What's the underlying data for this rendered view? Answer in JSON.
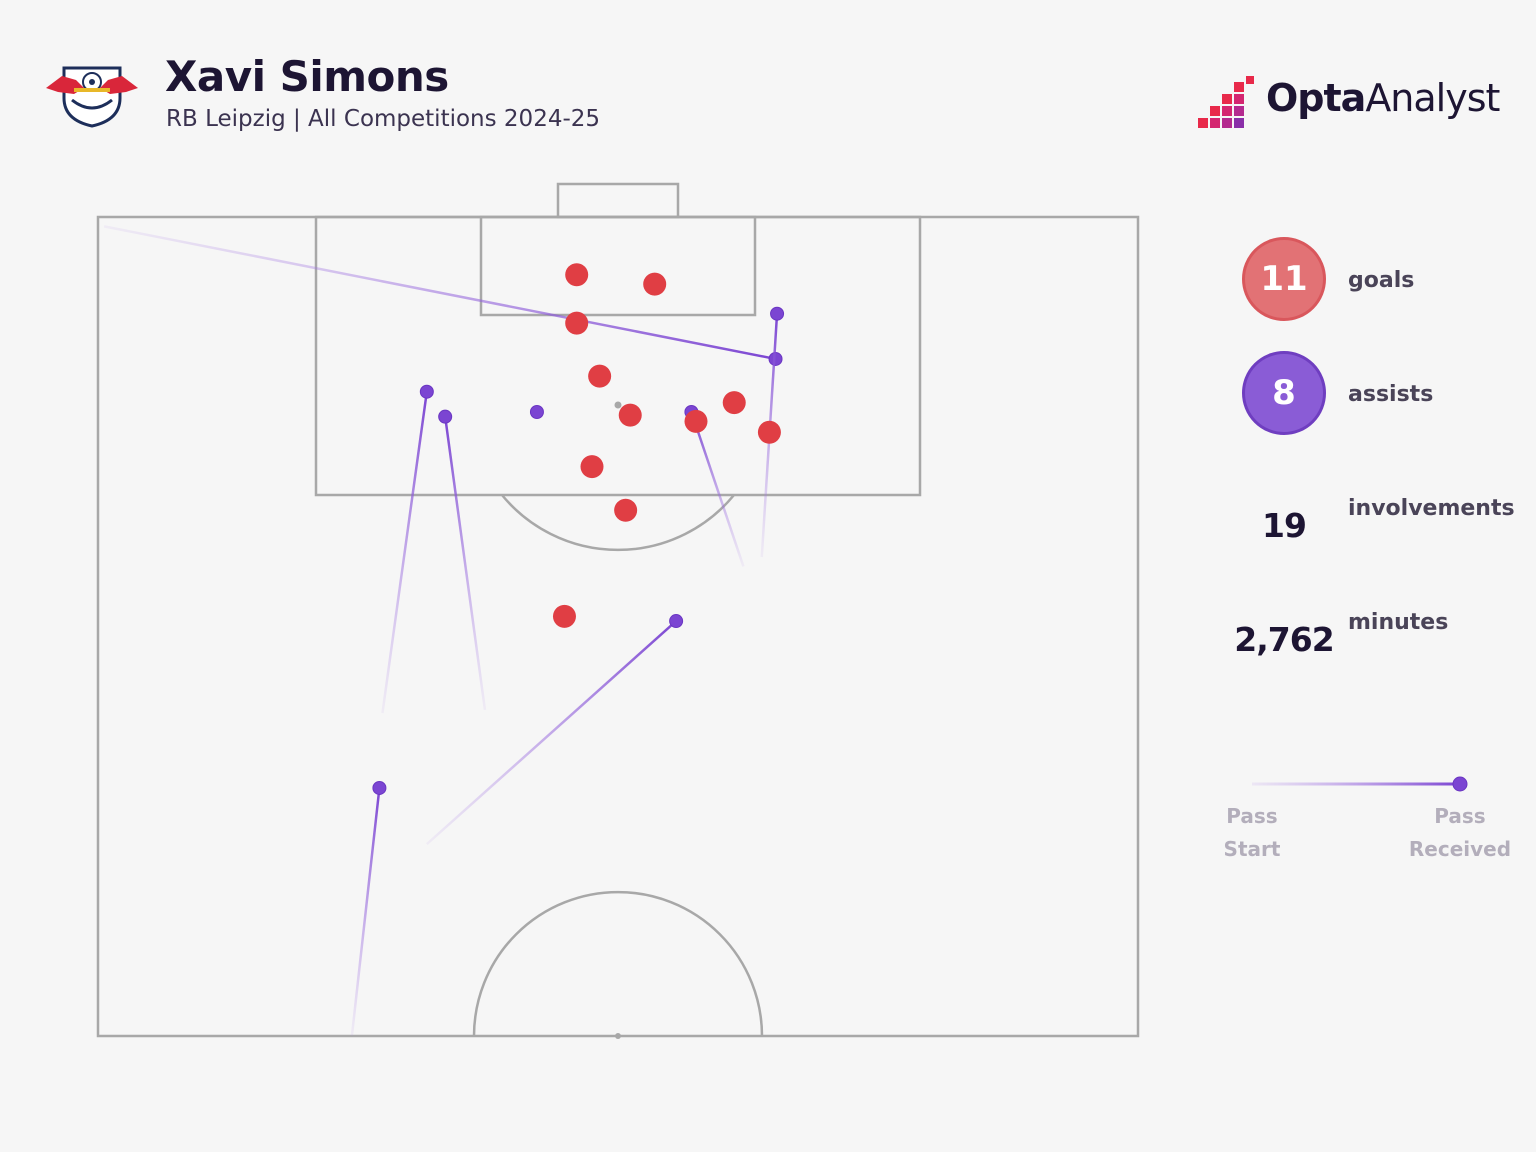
{
  "header": {
    "player": "Xavi Simons",
    "subtitle": "RB Leipzig | All Competitions 2024-25",
    "club_logo_icon": "rb-leipzig-crest",
    "brand": {
      "strong": "Opta",
      "light": "Analyst"
    }
  },
  "stats": [
    {
      "value": "11",
      "label": "goals",
      "style": "badge",
      "color": "#e27275"
    },
    {
      "value": "8",
      "label": "assists",
      "style": "badge",
      "color": "#8a5cd6"
    },
    {
      "value": "19",
      "label": "involvements",
      "style": "plain"
    },
    {
      "value": "2,762",
      "label": "minutes",
      "style": "plain"
    }
  ],
  "legend": {
    "start_line1": "Pass",
    "start_line2": "Start",
    "end_line1": "Pass",
    "end_line2": "Received"
  },
  "colors": {
    "goal": "#e03e44",
    "assist": "#7b45d2",
    "pitch_line": "#a8a8a8",
    "background": "#f6f6f6"
  },
  "chart_data": {
    "type": "scatter",
    "title": "",
    "xlabel": "",
    "ylabel": "",
    "xlim": [
      0,
      68
    ],
    "ylim": [
      52.5,
      105
    ],
    "grid": false,
    "pitch": "half-pitch (attacking half, goal at top)",
    "goals": [
      {
        "x": 31.3,
        "y": 101.3
      },
      {
        "x": 36.4,
        "y": 100.7
      },
      {
        "x": 31.3,
        "y": 98.2
      },
      {
        "x": 32.8,
        "y": 94.8
      },
      {
        "x": 34.8,
        "y": 92.3
      },
      {
        "x": 41.6,
        "y": 93.1
      },
      {
        "x": 39.1,
        "y": 91.9
      },
      {
        "x": 43.9,
        "y": 91.2
      },
      {
        "x": 32.3,
        "y": 89.0
      },
      {
        "x": 34.5,
        "y": 86.2
      },
      {
        "x": 30.5,
        "y": 79.4
      }
    ],
    "assists": [
      {
        "start": {
          "x": 0.4,
          "y": 104.4
        },
        "end": {
          "x": 44.3,
          "y": 95.9
        }
      },
      {
        "start": {
          "x": 43.4,
          "y": 83.2
        },
        "end": {
          "x": 44.4,
          "y": 98.8
        }
      },
      {
        "start": {
          "x": 18.6,
          "y": 73.2
        },
        "end": {
          "x": 21.5,
          "y": 93.8
        }
      },
      {
        "start": {
          "x": 25.3,
          "y": 73.4
        },
        "end": {
          "x": 22.7,
          "y": 92.2
        }
      },
      {
        "start": {
          "x": 42.2,
          "y": 82.6
        },
        "end": {
          "x": 38.8,
          "y": 92.5
        }
      },
      {
        "start": {
          "x": 21.5,
          "y": 64.8
        },
        "end": {
          "x": 37.8,
          "y": 79.1
        }
      },
      {
        "start": {
          "x": 16.6,
          "y": 52.5
        },
        "end": {
          "x": 18.4,
          "y": 68.4
        }
      },
      {
        "start": {
          "x": 28.7,
          "y": 92.5
        },
        "end": {
          "x": 28.7,
          "y": 92.5
        }
      }
    ]
  }
}
